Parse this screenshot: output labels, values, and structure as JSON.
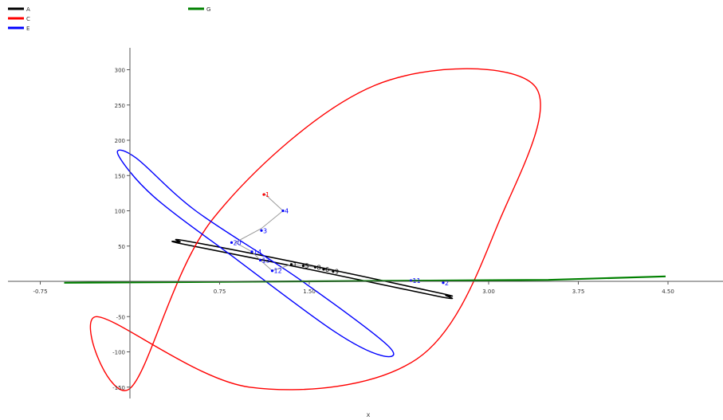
{
  "chart_data": {
    "type": "line",
    "title": "",
    "xlabel": "x",
    "ylabel": "",
    "xlim": [
      -1.0,
      5.0
    ],
    "ylim": [
      -160,
      335
    ],
    "x_ticks": [
      -0.75,
      0.75,
      1.5,
      3.0,
      3.75,
      4.5
    ],
    "x_tick_labels": [
      "-0.75",
      "0.75",
      "1.50",
      "3.00",
      "3.75",
      "4.50"
    ],
    "y_ticks": [
      -150,
      -100,
      -50,
      50,
      100,
      150,
      200,
      250,
      300
    ],
    "y_tick_labels": [
      "-150",
      "-100",
      "-50",
      "50",
      "100",
      "150",
      "200",
      "250",
      "300"
    ],
    "grid": false,
    "legend_position": "top-left",
    "series": [
      {
        "name": "A",
        "color": "#000000",
        "style": "thin closed loop",
        "center": [
          1.54,
          20
        ],
        "points": [
          [
            0.42,
            56
          ],
          [
            0.48,
            57
          ],
          [
            1.5,
            23
          ],
          [
            2.6,
            -17
          ],
          [
            2.64,
            -20
          ],
          [
            2.6,
            -22
          ],
          [
            1.5,
            17
          ],
          [
            0.44,
            53
          ]
        ]
      },
      {
        "name": "C",
        "color": "#ff0000",
        "style": "ellipse",
        "center": [
          1.54,
          88
        ],
        "points": [
          [
            -0.28,
            -50
          ],
          [
            0.0,
            -152
          ],
          [
            0.7,
            90
          ],
          [
            2.05,
            278
          ],
          [
            3.38,
            278
          ],
          [
            3.1,
            90
          ],
          [
            2.4,
            -110
          ],
          [
            1.0,
            -150
          ]
        ]
      },
      {
        "name": "E",
        "color": "#0000ff",
        "style": "ellipse",
        "center": [
          1.54,
          37
        ],
        "points": [
          [
            -0.1,
            180
          ],
          [
            0.05,
            175
          ],
          [
            0.55,
            100
          ],
          [
            1.4,
            5
          ],
          [
            2.15,
            -90
          ],
          [
            2.1,
            -105
          ],
          [
            1.7,
            -70
          ],
          [
            0.9,
            30
          ],
          [
            0.2,
            120
          ]
        ]
      },
      {
        "name": "G",
        "color": "#008000",
        "style": "line",
        "points": [
          [
            -0.55,
            -2
          ],
          [
            0.5,
            -1
          ],
          [
            1.5,
            0
          ],
          [
            2.5,
            1
          ],
          [
            3.5,
            2
          ],
          [
            4.48,
            7
          ]
        ]
      }
    ],
    "annotations": [
      {
        "label": "1",
        "x": 1.12,
        "y": 123,
        "color": "#ff0000"
      },
      {
        "label": "4",
        "x": 1.28,
        "y": 100,
        "color": "#0000ff"
      },
      {
        "label": "3",
        "x": 1.1,
        "y": 72,
        "color": "#0000ff"
      },
      {
        "label": "20",
        "x": 0.85,
        "y": 55,
        "color": "#0000ff"
      },
      {
        "label": "14",
        "x": 1.02,
        "y": 42,
        "color": "#0000ff"
      },
      {
        "label": "13",
        "x": 1.09,
        "y": 30,
        "color": "#0000ff"
      },
      {
        "label": "12",
        "x": 1.19,
        "y": 15,
        "color": "#0000ff"
      },
      {
        "label": "1",
        "x": 1.35,
        "y": 24,
        "color": "#000000"
      },
      {
        "label": "5",
        "x": 1.45,
        "y": 22,
        "color": "#000000"
      },
      {
        "label": "8",
        "x": 1.55,
        "y": 20,
        "color": "#000000"
      },
      {
        "label": "6",
        "x": 1.62,
        "y": 17,
        "color": "#000000"
      },
      {
        "label": "9",
        "x": 1.7,
        "y": 14,
        "color": "#000000"
      },
      {
        "label": "11",
        "x": 2.35,
        "y": 1,
        "color": "#0000ff"
      },
      {
        "label": "2",
        "x": 2.62,
        "y": -2,
        "color": "#0000ff"
      }
    ],
    "gray_path": [
      [
        1.12,
        125
      ],
      [
        1.28,
        100
      ],
      [
        1.1,
        75
      ],
      [
        0.88,
        55
      ],
      [
        1.02,
        42
      ],
      [
        1.09,
        30
      ],
      [
        1.19,
        15
      ],
      [
        1.35,
        24
      ],
      [
        1.55,
        20
      ],
      [
        1.7,
        14
      ]
    ]
  }
}
